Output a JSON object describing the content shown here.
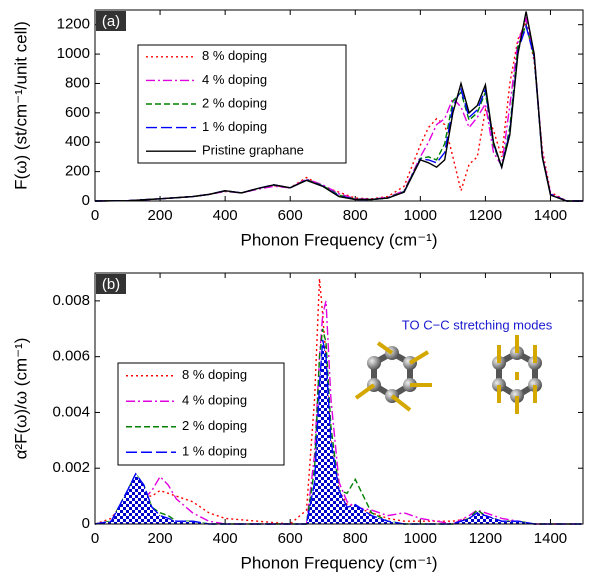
{
  "chart_data": [
    {
      "type": "line",
      "panel_label": "(a)",
      "x_label": "Phonon Frequency (cm⁻¹)",
      "y_label": "F(ω) (st/cm⁻¹/unit cell)",
      "xlim": [
        0,
        1500
      ],
      "xticks": [
        0,
        200,
        400,
        600,
        800,
        1000,
        1200,
        1400
      ],
      "ylim": [
        0,
        1300
      ],
      "yticks": [
        0,
        200,
        400,
        600,
        800,
        1000,
        1200
      ],
      "x": [
        0,
        100,
        200,
        300,
        350,
        400,
        450,
        500,
        550,
        600,
        650,
        700,
        750,
        800,
        850,
        900,
        950,
        1000,
        1025,
        1050,
        1075,
        1100,
        1125,
        1150,
        1175,
        1200,
        1225,
        1250,
        1275,
        1300,
        1325,
        1350,
        1375,
        1400,
        1450,
        1500
      ],
      "series": [
        {
          "name": "8 % doping",
          "color": "#ff0000",
          "values": [
            0,
            2,
            15,
            30,
            45,
            65,
            55,
            80,
            105,
            90,
            160,
            100,
            60,
            20,
            15,
            30,
            100,
            380,
            500,
            560,
            520,
            300,
            70,
            250,
            300,
            620,
            480,
            300,
            800,
            1100,
            1220,
            950,
            350,
            60,
            0,
            0
          ]
        },
        {
          "name": "4 % doping",
          "color": "#e000e0",
          "values": [
            0,
            2,
            15,
            30,
            45,
            65,
            55,
            80,
            100,
            90,
            150,
            110,
            50,
            15,
            12,
            25,
            70,
            300,
            400,
            520,
            560,
            700,
            640,
            500,
            570,
            660,
            330,
            240,
            650,
            1080,
            1240,
            1000,
            320,
            50,
            0,
            0
          ]
        },
        {
          "name": "2 % doping",
          "color": "#008000",
          "values": [
            0,
            2,
            15,
            30,
            45,
            68,
            55,
            85,
            108,
            90,
            145,
            105,
            40,
            12,
            10,
            22,
            65,
            290,
            300,
            280,
            390,
            680,
            740,
            550,
            600,
            740,
            380,
            230,
            500,
            1050,
            1200,
            980,
            300,
            45,
            0,
            0
          ]
        },
        {
          "name": "1 % doping",
          "color": "#0000ff",
          "values": [
            0,
            2,
            15,
            30,
            45,
            70,
            55,
            85,
            110,
            90,
            142,
            102,
            35,
            10,
            10,
            20,
            62,
            285,
            280,
            260,
            330,
            640,
            760,
            570,
            620,
            760,
            390,
            230,
            470,
            1020,
            1190,
            980,
            300,
            45,
            0,
            0
          ]
        },
        {
          "name": "Pristine graphane",
          "color": "#000000",
          "values": [
            0,
            2,
            15,
            30,
            45,
            70,
            55,
            85,
            110,
            90,
            140,
            100,
            30,
            10,
            10,
            20,
            60,
            280,
            260,
            230,
            280,
            600,
            800,
            600,
            650,
            790,
            400,
            230,
            450,
            1000,
            1290,
            1000,
            300,
            40,
            0,
            0
          ]
        }
      ]
    },
    {
      "type": "line",
      "panel_label": "(b)",
      "x_label": "Phonon Frequency (cm⁻¹)",
      "y_label": "α²F(ω)/ω (cm⁻¹)",
      "annotation": "TO C−C stretching modes",
      "xlim": [
        0,
        1500
      ],
      "xticks": [
        0,
        200,
        400,
        600,
        800,
        1000,
        1200,
        1400
      ],
      "ylim": [
        0,
        0.009
      ],
      "yticks": [
        0,
        0.002,
        0.004,
        0.006,
        0.008
      ],
      "x": [
        0,
        50,
        100,
        125,
        150,
        175,
        200,
        225,
        250,
        300,
        350,
        400,
        500,
        600,
        650,
        675,
        690,
        700,
        710,
        725,
        750,
        775,
        800,
        850,
        900,
        950,
        1000,
        1100,
        1150,
        1175,
        1200,
        1250,
        1300,
        1350,
        1400,
        1500
      ],
      "series": [
        {
          "name": "8 % doping",
          "color": "#ff0000",
          "values": [
            0,
            0.0002,
            0.001,
            0.0012,
            0.001,
            0.001,
            0.0012,
            0.0011,
            0.001,
            0.0008,
            0.0004,
            0.0002,
            0.0001,
            0,
            0.0005,
            0.0045,
            0.0088,
            0.0075,
            0.006,
            0.003,
            0.0012,
            0.0007,
            0.0006,
            0.0004,
            0.0002,
            0.0001,
            0.0001,
            0.0001,
            0.0002,
            0.0004,
            0.0003,
            0.0001,
            0.0001,
            0,
            0,
            0
          ]
        },
        {
          "name": "4 % doping",
          "color": "#e000e0",
          "values": [
            0,
            0.0001,
            0.0008,
            0.0012,
            0.0009,
            0.0012,
            0.0017,
            0.0014,
            0.0009,
            0.0004,
            0.0001,
            0,
            0,
            0,
            0,
            0.0025,
            0.006,
            0.0075,
            0.008,
            0.0045,
            0.0015,
            0.0008,
            0.0006,
            0.0005,
            0.0003,
            0.0004,
            0.0002,
            0,
            0.0003,
            0.0005,
            0.0004,
            0.0002,
            0.0001,
            0,
            0,
            0
          ]
        },
        {
          "name": "2 % doping",
          "color": "#008000",
          "values": [
            0,
            0.0001,
            0.0012,
            0.0018,
            0.0014,
            0.0006,
            0.0004,
            0.0003,
            0.0001,
            0.0001,
            0,
            0,
            0,
            0,
            0,
            0.002,
            0.006,
            0.007,
            0.0065,
            0.0035,
            0.0012,
            0.0011,
            0.0016,
            0.0004,
            0.0001,
            0,
            0,
            0,
            0.0002,
            0.0005,
            0.0003,
            0.0001,
            0.0001,
            0,
            0,
            0
          ]
        },
        {
          "name": "1 % doping",
          "color": "#0000ff",
          "values": [
            0,
            0.0001,
            0.0012,
            0.0018,
            0.0014,
            0.0006,
            0.0003,
            0.0002,
            0.0001,
            0.0001,
            0,
            0,
            0,
            0,
            0,
            0.0015,
            0.005,
            0.0066,
            0.006,
            0.003,
            0.0012,
            0.0006,
            0.0007,
            0.0003,
            0.0001,
            0,
            0,
            0,
            0.0002,
            0.0004,
            0.0003,
            0.0001,
            0.0001,
            0,
            0,
            0
          ]
        }
      ]
    }
  ]
}
